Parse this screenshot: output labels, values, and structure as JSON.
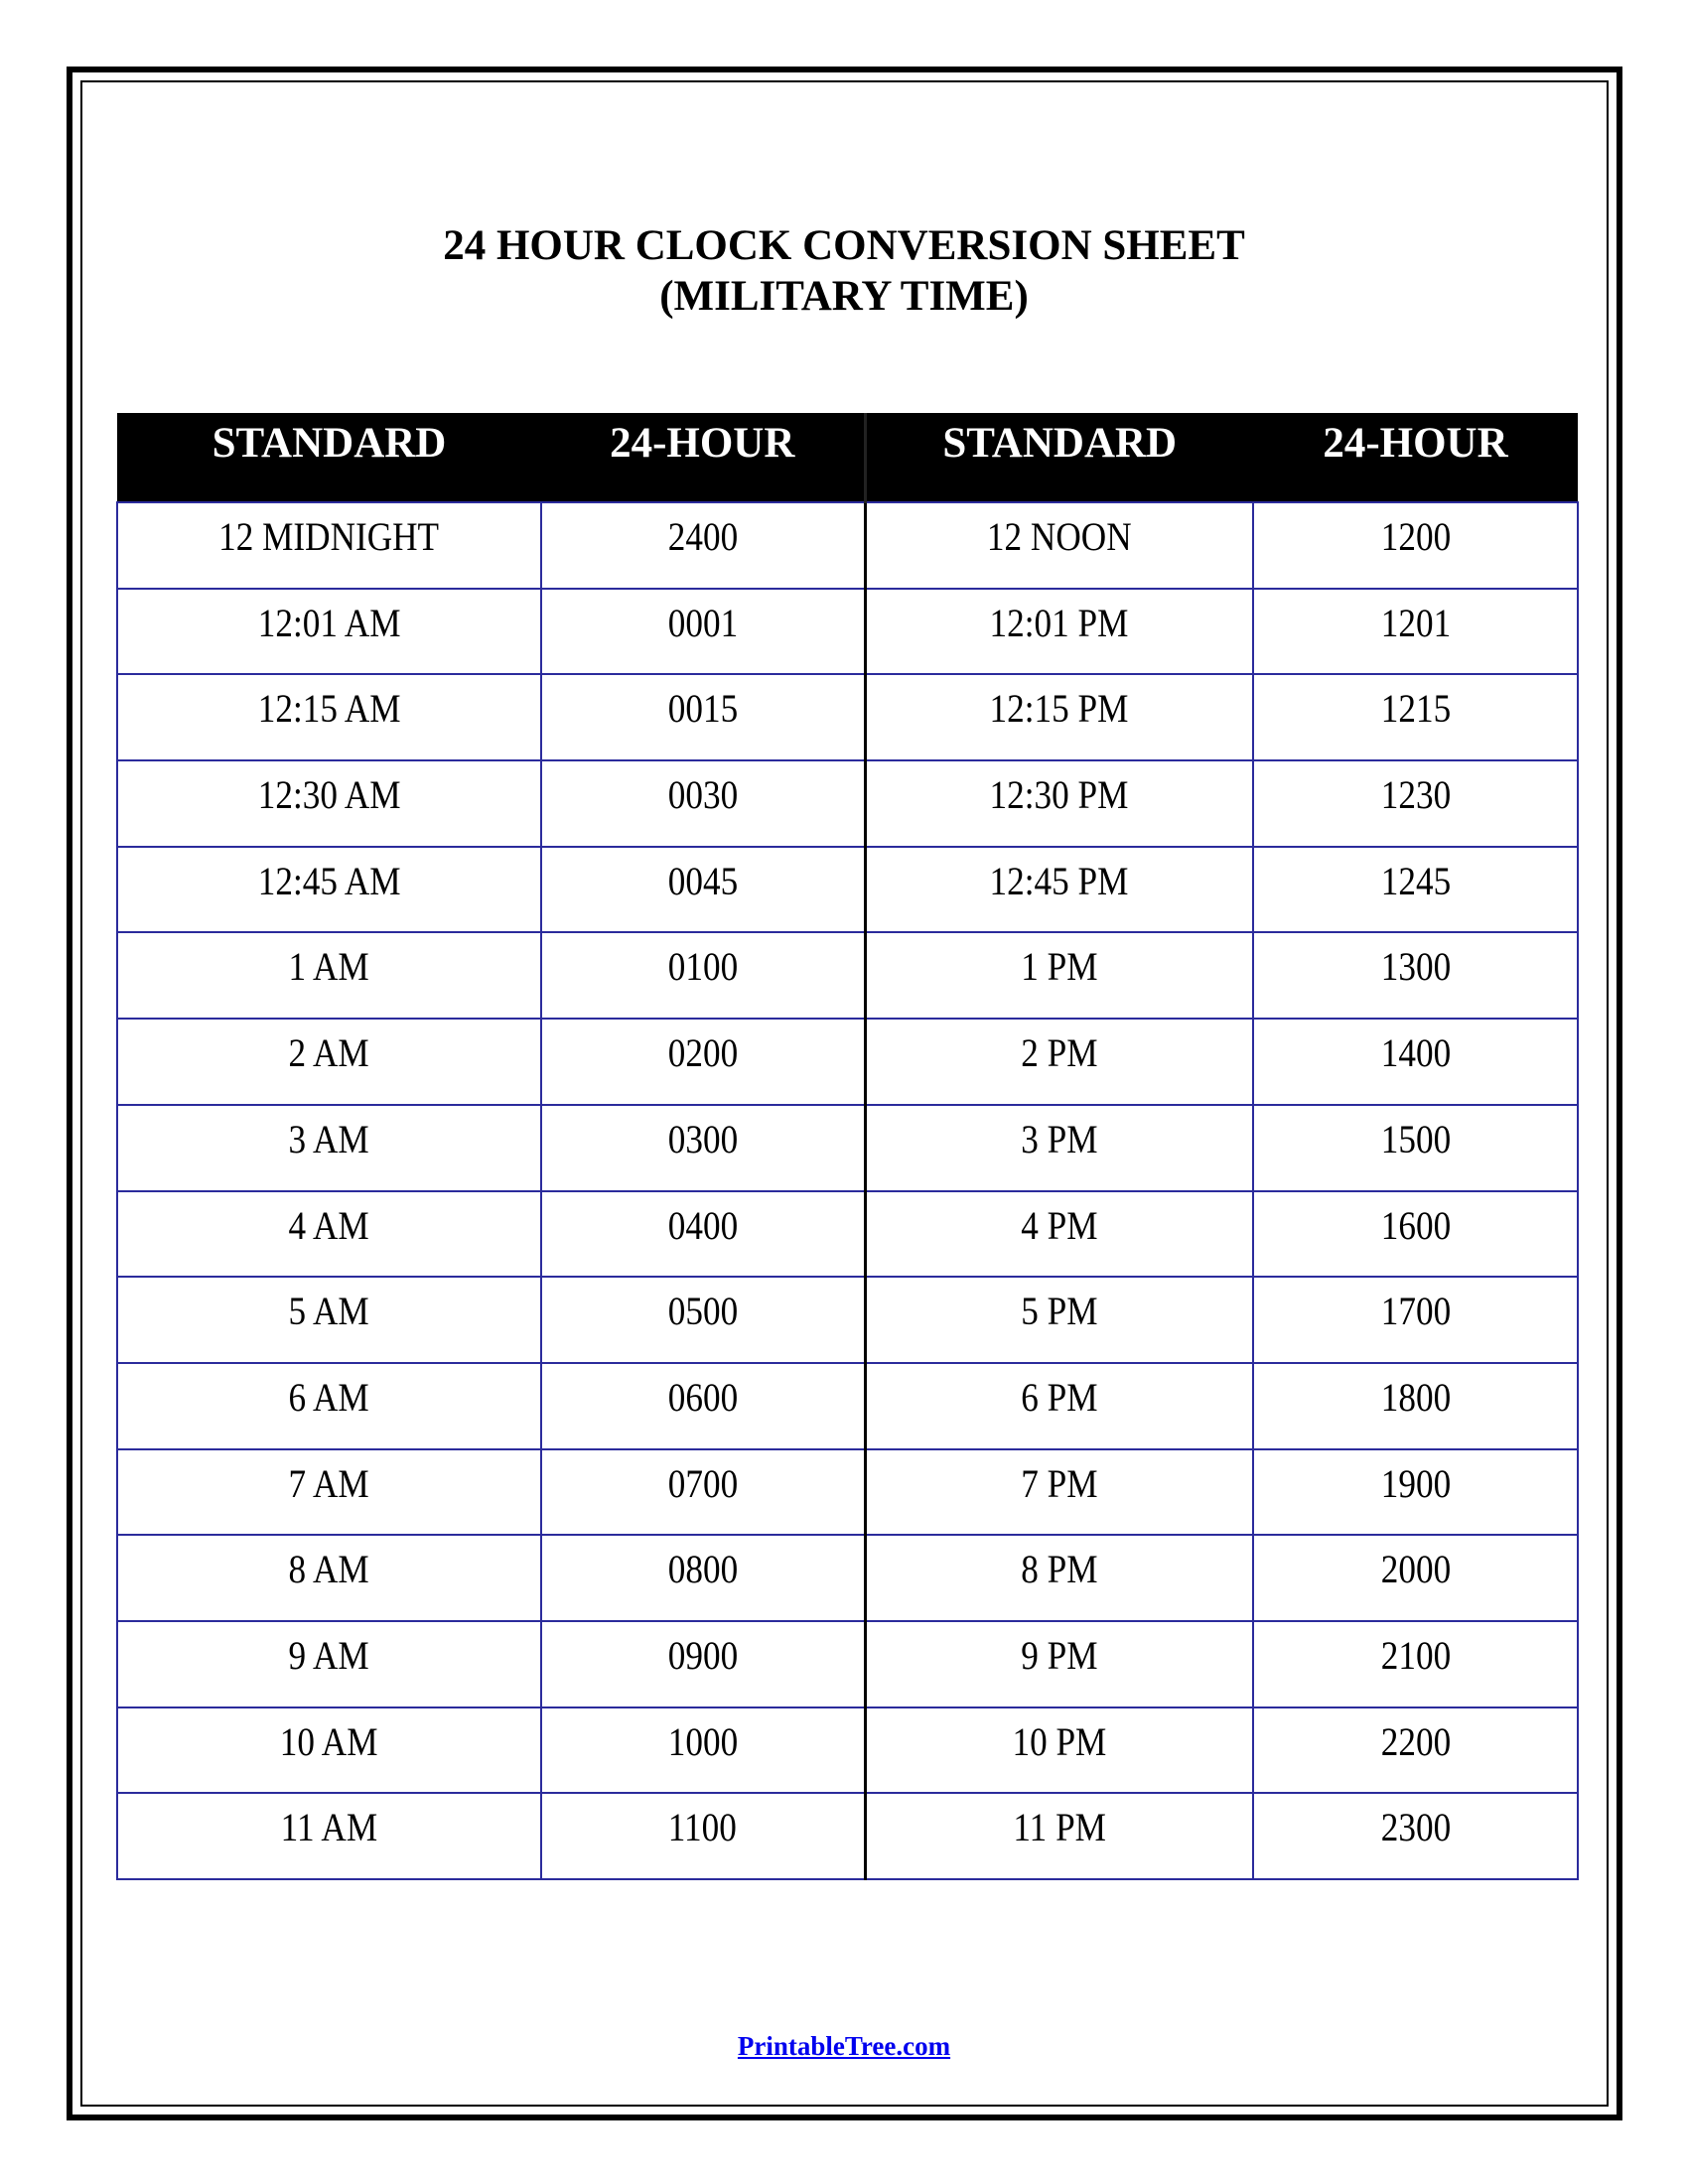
{
  "title_line1": "24 HOUR CLOCK CONVERSION SHEET",
  "title_line2": "(MILITARY TIME)",
  "table": {
    "headers": [
      "STANDARD",
      "24-HOUR",
      "STANDARD",
      "24-HOUR"
    ],
    "rows": [
      [
        "12 MIDNIGHT",
        "2400",
        "12 NOON",
        "1200"
      ],
      [
        "12:01 AM",
        "0001",
        "12:01 PM",
        "1201"
      ],
      [
        "12:15 AM",
        "0015",
        "12:15 PM",
        "1215"
      ],
      [
        "12:30 AM",
        "0030",
        "12:30 PM",
        "1230"
      ],
      [
        "12:45 AM",
        "0045",
        "12:45 PM",
        "1245"
      ],
      [
        "1 AM",
        "0100",
        "1 PM",
        "1300"
      ],
      [
        "2 AM",
        "0200",
        "2 PM",
        "1400"
      ],
      [
        "3 AM",
        "0300",
        "3 PM",
        "1500"
      ],
      [
        "4 AM",
        "0400",
        "4 PM",
        "1600"
      ],
      [
        "5 AM",
        "0500",
        "5 PM",
        "1700"
      ],
      [
        "6 AM",
        "0600",
        "6 PM",
        "1800"
      ],
      [
        "7 AM",
        "0700",
        "7 PM",
        "1900"
      ],
      [
        "8 AM",
        "0800",
        "8 PM",
        "2000"
      ],
      [
        "9 AM",
        "0900",
        "9 PM",
        "2100"
      ],
      [
        "10 AM",
        "1000",
        "10 PM",
        "2200"
      ],
      [
        "11 AM",
        "1100",
        "11 PM",
        "2300"
      ]
    ]
  },
  "footer_link": "PrintableTree.com",
  "colors": {
    "grid": "#2b2b9c",
    "header_bg": "#000000",
    "link": "#0000ee"
  }
}
